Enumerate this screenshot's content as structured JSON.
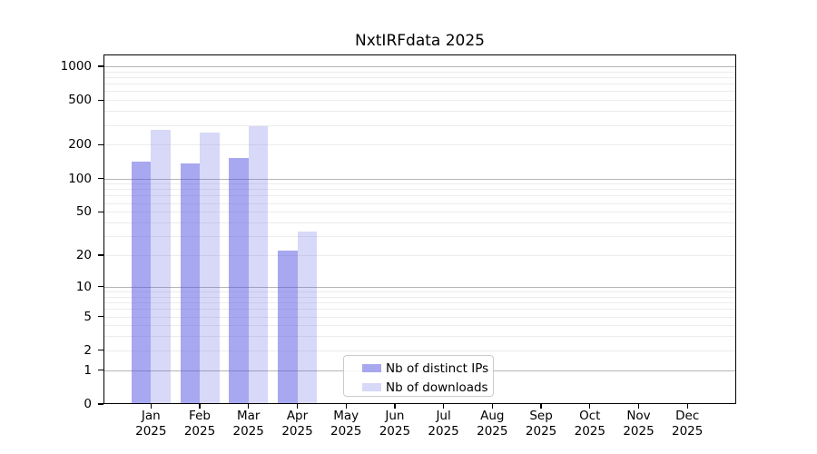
{
  "chart_data": {
    "type": "bar",
    "title": "NxtIRFdata 2025",
    "x_categories": [
      "Jan",
      "Feb",
      "Mar",
      "Apr",
      "May",
      "Jun",
      "Jul",
      "Aug",
      "Sep",
      "Oct",
      "Nov",
      "Dec"
    ],
    "x_year_label": "2025",
    "series": [
      {
        "name": "Nb of distinct IPs",
        "color": "rgba(81,81,225,0.5)",
        "solid_hex": "#a8a8f0",
        "values": [
          142,
          137,
          152,
          22,
          null,
          null,
          null,
          null,
          null,
          null,
          null,
          null
        ]
      },
      {
        "name": "Nb of downloads",
        "color": "rgba(99,99,227,0.25)",
        "solid_hex": "#d8d8f8",
        "values": [
          272,
          256,
          293,
          33,
          null,
          null,
          null,
          null,
          null,
          null,
          null,
          null
        ]
      }
    ],
    "yscale": "log1p",
    "ylim": [
      0,
      1300
    ],
    "ytick_values": [
      0,
      1,
      2,
      5,
      10,
      20,
      50,
      100,
      200,
      500,
      1000
    ],
    "grid": {
      "enabled": true,
      "major_color": "#b5b5b5",
      "minor_color": "#ececec"
    },
    "legend": {
      "position": "lower center",
      "frame_border": "#cbcbcb"
    },
    "bar_group": {
      "bars_per_group": 2,
      "bar_order": [
        "Nb of distinct IPs",
        "Nb of downloads"
      ]
    }
  }
}
